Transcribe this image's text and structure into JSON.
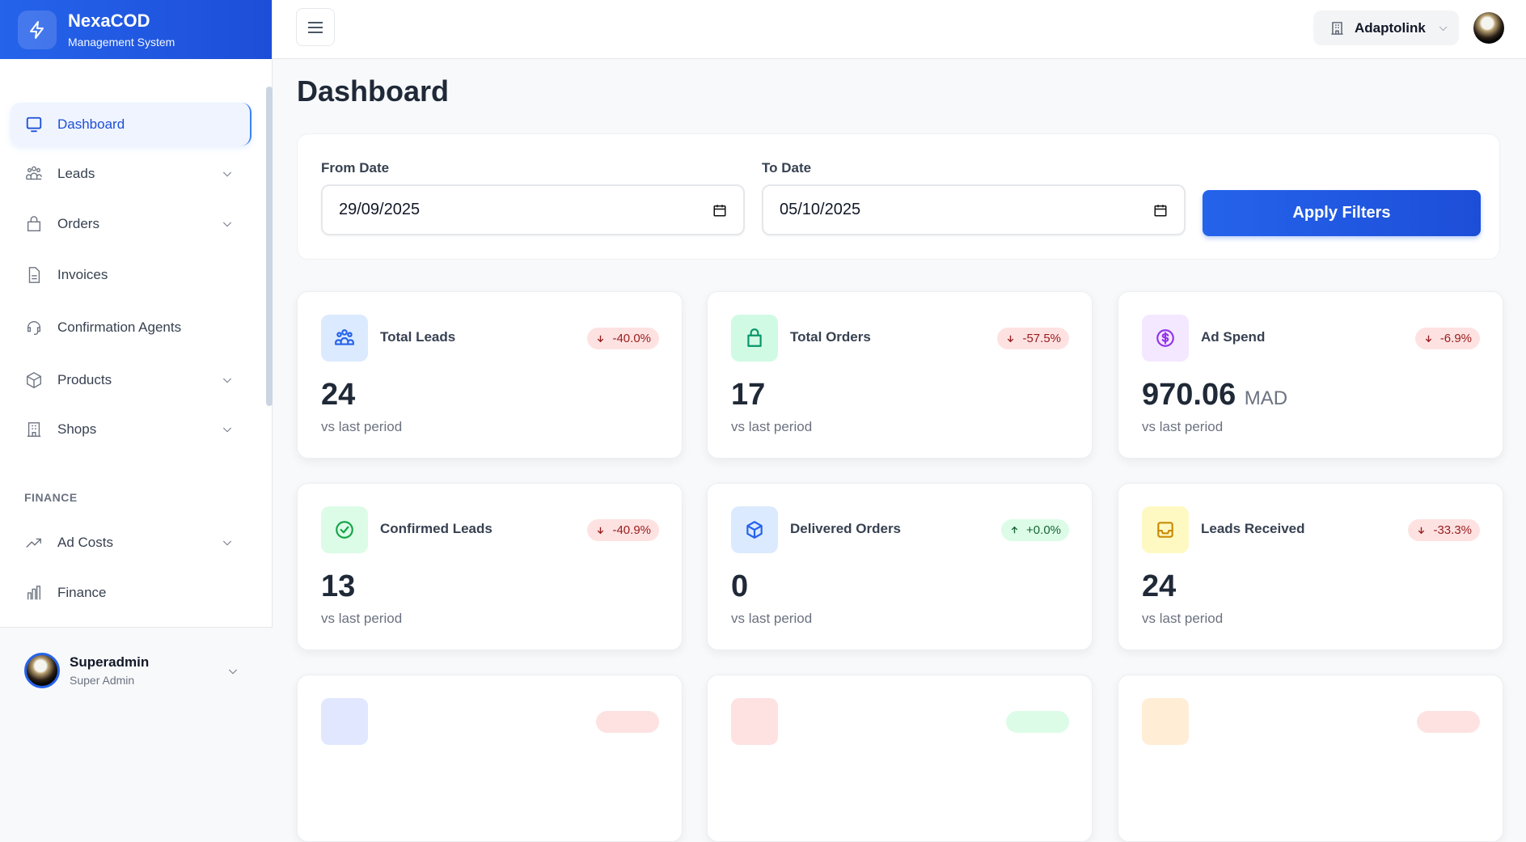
{
  "brand": {
    "name": "NexaCOD",
    "subtitle": "Management System"
  },
  "sidebar": {
    "items": [
      {
        "label": "Dashboard",
        "icon": "monitor-icon",
        "active": true
      },
      {
        "label": "Leads",
        "icon": "users-icon",
        "expandable": true
      },
      {
        "label": "Orders",
        "icon": "shopping-bag-icon",
        "expandable": true
      },
      {
        "label": "Invoices",
        "icon": "document-icon"
      },
      {
        "label": "Confirmation Agents",
        "icon": "headset-icon"
      },
      {
        "label": "Products",
        "icon": "box-icon",
        "expandable": true
      },
      {
        "label": "Shops",
        "icon": "building-icon",
        "expandable": true
      }
    ],
    "finance_section": "FINANCE",
    "finance_items": [
      {
        "label": "Ad Costs",
        "icon": "trending-up-icon",
        "expandable": true
      },
      {
        "label": "Finance",
        "icon": "bar-chart-icon"
      }
    ],
    "user": {
      "name": "Superadmin",
      "role": "Super Admin"
    }
  },
  "topbar": {
    "organization": "Adaptolink"
  },
  "page": {
    "title": "Dashboard"
  },
  "filters": {
    "from_label": "From Date",
    "from_value": "29/09/2025",
    "to_label": "To Date",
    "to_value": "05/10/2025",
    "apply_label": "Apply Filters"
  },
  "stats": [
    {
      "title": "Total Leads",
      "value": "24",
      "unit": "",
      "change": "-40.0%",
      "trend": "down",
      "sub": "vs last period",
      "icon": "users-icon",
      "color": "#2563eb",
      "bg": "#dbeafe"
    },
    {
      "title": "Total Orders",
      "value": "17",
      "unit": "",
      "change": "-57.5%",
      "trend": "down",
      "sub": "vs last period",
      "icon": "shopping-bag-icon",
      "color": "#059669",
      "bg": "#d1fae5"
    },
    {
      "title": "Ad Spend",
      "value": "970.06",
      "unit": "MAD",
      "change": "-6.9%",
      "trend": "down",
      "sub": "vs last period",
      "icon": "dollar-icon",
      "color": "#9333ea",
      "bg": "#f3e8ff"
    },
    {
      "title": "Confirmed Leads",
      "value": "13",
      "unit": "",
      "change": "-40.9%",
      "trend": "down",
      "sub": "vs last period",
      "icon": "check-circle-icon",
      "color": "#16a34a",
      "bg": "#dcfce7"
    },
    {
      "title": "Delivered Orders",
      "value": "0",
      "unit": "",
      "change": "+0.0%",
      "trend": "up",
      "sub": "vs last period",
      "icon": "cube-icon",
      "color": "#2563eb",
      "bg": "#dbeafe"
    },
    {
      "title": "Leads Received",
      "value": "24",
      "unit": "",
      "change": "-33.3%",
      "trend": "down",
      "sub": "vs last period",
      "icon": "inbox-icon",
      "color": "#ca8a04",
      "bg": "#fef9c3"
    }
  ],
  "partial_cards": [
    {
      "bg": "#e0e7ff",
      "badge": "down"
    },
    {
      "bg": "#fee2e2",
      "badge": "up"
    },
    {
      "bg": "#ffedd5",
      "badge": "down"
    }
  ]
}
